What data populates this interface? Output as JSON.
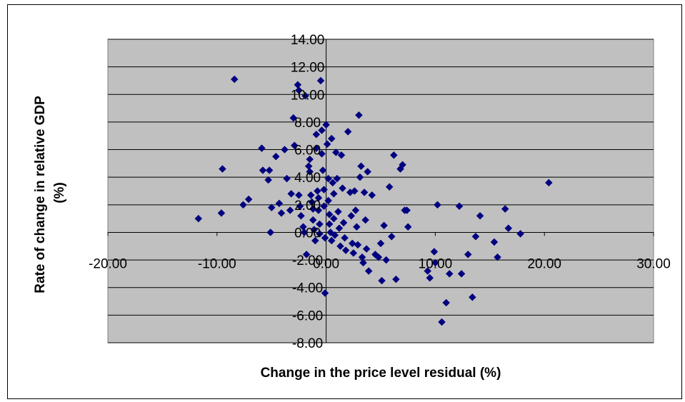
{
  "chart_data": {
    "type": "scatter",
    "title": "",
    "xlabel": "Change in the price level residual (%)",
    "ylabel_line1": "Rate of change in relative GDP",
    "ylabel_line2": "(%)",
    "xlim": [
      -20,
      30
    ],
    "ylim": [
      -8,
      14
    ],
    "x_ticks": [
      -20,
      -10,
      0,
      10,
      20,
      30
    ],
    "y_ticks": [
      -8,
      -6,
      -4,
      -2,
      0,
      2,
      4,
      6,
      8,
      10,
      12,
      14
    ],
    "x_tick_labels": [
      "-20.00",
      "-10.00",
      "0.00",
      "10.00",
      "20.00",
      "30.00"
    ],
    "y_tick_labels": [
      "-8.00",
      "-6.00",
      "-4.00",
      "-2.00",
      "0.00",
      "2.00",
      "4.00",
      "6.00",
      "8.00",
      "10.00",
      "12.00",
      "14.00"
    ],
    "grid": "horizontal",
    "legend": "none",
    "colors": {
      "plot_bg": "#c0c0c0",
      "marker": "#000080",
      "grid": "#000000"
    },
    "points": [
      [
        -8.4,
        11.1
      ],
      [
        -9.5,
        4.6
      ],
      [
        -11.7,
        1.0
      ],
      [
        -9.6,
        1.4
      ],
      [
        -7.6,
        2.0
      ],
      [
        -7.1,
        2.4
      ],
      [
        -5.9,
        6.1
      ],
      [
        -5.8,
        4.5
      ],
      [
        -5.2,
        4.5
      ],
      [
        -5.3,
        3.8
      ],
      [
        -5.0,
        1.8
      ],
      [
        -5.1,
        0.0
      ],
      [
        -4.6,
        5.5
      ],
      [
        -4.3,
        2.1
      ],
      [
        -4.1,
        1.4
      ],
      [
        -3.8,
        6.0
      ],
      [
        -3.6,
        3.9
      ],
      [
        -3.3,
        1.6
      ],
      [
        -3.2,
        2.8
      ],
      [
        -3.0,
        8.3
      ],
      [
        -2.9,
        6.3
      ],
      [
        -2.6,
        10.7
      ],
      [
        -2.5,
        10.3
      ],
      [
        -2.5,
        2.7
      ],
      [
        -2.4,
        1.9
      ],
      [
        -2.3,
        1.2
      ],
      [
        -2.1,
        0.4
      ],
      [
        -2.0,
        0.0
      ],
      [
        -1.9,
        9.9
      ],
      [
        -1.8,
        -1.6
      ],
      [
        -1.6,
        4.8
      ],
      [
        -1.5,
        5.3
      ],
      [
        -1.5,
        4.4
      ],
      [
        -1.4,
        2.7
      ],
      [
        -1.3,
        2.2
      ],
      [
        -1.2,
        1.7
      ],
      [
        -1.2,
        0.9
      ],
      [
        -1.1,
        0.2
      ],
      [
        -1.0,
        -0.6
      ],
      [
        -0.9,
        7.1
      ],
      [
        -0.9,
        6.1
      ],
      [
        -0.8,
        3.0
      ],
      [
        -0.7,
        2.5
      ],
      [
        -0.7,
        1.6
      ],
      [
        -0.6,
        0.6
      ],
      [
        -0.6,
        -0.1
      ],
      [
        -0.5,
        11.0
      ],
      [
        -0.4,
        7.4
      ],
      [
        -0.4,
        5.7
      ],
      [
        -0.3,
        4.5
      ],
      [
        -0.2,
        3.1
      ],
      [
        -0.2,
        1.9
      ],
      [
        -0.1,
        -0.4
      ],
      [
        -0.1,
        -4.4
      ],
      [
        0.0,
        7.8
      ],
      [
        0.1,
        6.4
      ],
      [
        0.2,
        3.9
      ],
      [
        0.2,
        2.3
      ],
      [
        0.3,
        1.3
      ],
      [
        0.3,
        0.6
      ],
      [
        0.4,
        0.0
      ],
      [
        0.5,
        -0.6
      ],
      [
        0.5,
        6.8
      ],
      [
        0.6,
        3.6
      ],
      [
        0.7,
        2.8
      ],
      [
        0.7,
        1.0
      ],
      [
        0.8,
        -0.2
      ],
      [
        0.9,
        5.8
      ],
      [
        1.0,
        3.9
      ],
      [
        1.1,
        1.5
      ],
      [
        1.2,
        0.3
      ],
      [
        1.3,
        -1.0
      ],
      [
        1.4,
        5.6
      ],
      [
        1.5,
        3.2
      ],
      [
        1.6,
        0.7
      ],
      [
        1.7,
        -0.4
      ],
      [
        1.8,
        -1.3
      ],
      [
        2.0,
        7.3
      ],
      [
        2.2,
        2.9
      ],
      [
        2.3,
        1.2
      ],
      [
        2.4,
        -0.8
      ],
      [
        2.5,
        -1.5
      ],
      [
        2.6,
        3.0
      ],
      [
        2.7,
        1.6
      ],
      [
        2.8,
        0.4
      ],
      [
        2.9,
        -0.9
      ],
      [
        3.0,
        8.5
      ],
      [
        3.1,
        4.0
      ],
      [
        3.2,
        4.8
      ],
      [
        3.3,
        -1.8
      ],
      [
        3.4,
        -2.2
      ],
      [
        3.5,
        2.9
      ],
      [
        3.6,
        0.9
      ],
      [
        3.7,
        -1.2
      ],
      [
        3.8,
        4.4
      ],
      [
        3.9,
        -2.8
      ],
      [
        4.2,
        2.7
      ],
      [
        4.5,
        -1.6
      ],
      [
        4.8,
        -1.8
      ],
      [
        5.0,
        -0.8
      ],
      [
        5.1,
        -3.5
      ],
      [
        5.3,
        0.5
      ],
      [
        5.5,
        -2.0
      ],
      [
        5.8,
        3.3
      ],
      [
        6.0,
        -0.3
      ],
      [
        6.2,
        5.6
      ],
      [
        6.4,
        -3.4
      ],
      [
        6.8,
        4.6
      ],
      [
        7.0,
        4.9
      ],
      [
        7.2,
        1.6
      ],
      [
        7.4,
        1.6
      ],
      [
        7.5,
        0.4
      ],
      [
        9.3,
        -2.8
      ],
      [
        9.5,
        -3.3
      ],
      [
        9.9,
        -1.4
      ],
      [
        10.0,
        -2.2
      ],
      [
        10.2,
        2.0
      ],
      [
        10.6,
        -6.5
      ],
      [
        11.0,
        -5.1
      ],
      [
        11.3,
        -3.0
      ],
      [
        12.2,
        1.9
      ],
      [
        12.4,
        -3.0
      ],
      [
        13.0,
        -1.6
      ],
      [
        13.4,
        -4.7
      ],
      [
        13.7,
        -0.3
      ],
      [
        14.1,
        1.2
      ],
      [
        15.4,
        -0.7
      ],
      [
        15.7,
        -1.8
      ],
      [
        16.4,
        1.7
      ],
      [
        16.7,
        0.3
      ],
      [
        17.8,
        -0.1
      ],
      [
        20.4,
        3.6
      ]
    ]
  }
}
